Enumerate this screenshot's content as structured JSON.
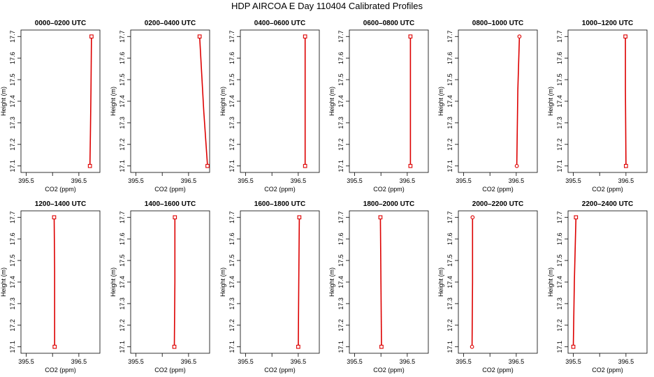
{
  "title": "HDP AIRCOA E  Day 110404  Calibrated Profiles",
  "chart_data": [
    {
      "type": "line",
      "title": "0000–0200 UTC",
      "xlabel": "CO2 (ppm)",
      "ylabel": "Height (m)",
      "xlim": [
        395.4,
        396.9
      ],
      "ylim": [
        17.07,
        17.73
      ],
      "xticks": [
        "395.5",
        "396.5"
      ],
      "yticks": [
        "17.1",
        "17.2",
        "17.3",
        "17.4",
        "17.5",
        "17.6",
        "17.7"
      ],
      "series": [
        {
          "values": [
            [
              396.71,
              17.1
            ],
            [
              396.72,
              17.25
            ],
            [
              396.73,
              17.45
            ],
            [
              396.74,
              17.7
            ]
          ]
        }
      ],
      "markers": "square",
      "color": "#dd0000"
    },
    {
      "type": "line",
      "title": "0200–0400 UTC",
      "xlabel": "CO2 (ppm)",
      "ylabel": "Height (m)",
      "xlim": [
        395.4,
        396.9
      ],
      "ylim": [
        17.07,
        17.73
      ],
      "xticks": [
        "395.5",
        "396.5"
      ],
      "yticks": [
        "17.1",
        "17.2",
        "17.3",
        "17.4",
        "17.5",
        "17.6",
        "17.7"
      ],
      "series": [
        {
          "values": [
            [
              396.86,
              17.1
            ],
            [
              396.79,
              17.35
            ],
            [
              396.71,
              17.7
            ]
          ]
        }
      ],
      "markers": "square",
      "color": "#dd0000"
    },
    {
      "type": "line",
      "title": "0400–0600 UTC",
      "xlabel": "CO2 (ppm)",
      "ylabel": "Height (m)",
      "xlim": [
        395.4,
        396.9
      ],
      "ylim": [
        17.07,
        17.73
      ],
      "xticks": [
        "395.5",
        "396.5"
      ],
      "yticks": [
        "17.1",
        "17.2",
        "17.3",
        "17.4",
        "17.5",
        "17.6",
        "17.7"
      ],
      "series": [
        {
          "values": [
            [
              396.63,
              17.1
            ],
            [
              396.63,
              17.4
            ],
            [
              396.63,
              17.7
            ]
          ]
        }
      ],
      "markers": "square",
      "color": "#dd0000"
    },
    {
      "type": "line",
      "title": "0600–0800 UTC",
      "xlabel": "CO2 (ppm)",
      "ylabel": "Height (m)",
      "xlim": [
        395.4,
        396.9
      ],
      "ylim": [
        17.07,
        17.73
      ],
      "xticks": [
        "395.5",
        "396.5"
      ],
      "yticks": [
        "17.1",
        "17.2",
        "17.3",
        "17.4",
        "17.5",
        "17.6",
        "17.7"
      ],
      "series": [
        {
          "values": [
            [
              396.56,
              17.1
            ],
            [
              396.56,
              17.7
            ]
          ]
        }
      ],
      "markers": "square",
      "color": "#dd0000"
    },
    {
      "type": "line",
      "title": "0800–1000 UTC",
      "xlabel": "CO2 (ppm)",
      "ylabel": "Height (m)",
      "xlim": [
        395.4,
        396.9
      ],
      "ylim": [
        17.07,
        17.73
      ],
      "xticks": [
        "395.5",
        "396.5"
      ],
      "yticks": [
        "17.1",
        "17.2",
        "17.3",
        "17.4",
        "17.5",
        "17.6",
        "17.7"
      ],
      "series": [
        {
          "values": [
            [
              396.51,
              17.1
            ],
            [
              396.53,
              17.45
            ],
            [
              396.56,
              17.7
            ]
          ]
        }
      ],
      "markers": "circle",
      "color": "#dd0000"
    },
    {
      "type": "line",
      "title": "1000–1200 UTC",
      "xlabel": "CO2 (ppm)",
      "ylabel": "Height (m)",
      "xlim": [
        395.4,
        396.9
      ],
      "ylim": [
        17.07,
        17.73
      ],
      "xticks": [
        "395.5",
        "396.5"
      ],
      "yticks": [
        "17.1",
        "17.2",
        "17.3",
        "17.4",
        "17.5",
        "17.6",
        "17.7"
      ],
      "series": [
        {
          "values": [
            [
              396.5,
              17.1
            ],
            [
              396.49,
              17.45
            ],
            [
              396.49,
              17.7
            ]
          ]
        }
      ],
      "markers": "square",
      "color": "#dd0000"
    },
    {
      "type": "line",
      "title": "1200–1400 UTC",
      "xlabel": "CO2 (ppm)",
      "ylabel": "Height (m)",
      "xlim": [
        395.4,
        396.9
      ],
      "ylim": [
        17.07,
        17.73
      ],
      "xticks": [
        "395.5",
        "396.5"
      ],
      "yticks": [
        "17.1",
        "17.2",
        "17.3",
        "17.4",
        "17.5",
        "17.6",
        "17.7"
      ],
      "series": [
        {
          "values": [
            [
              396.04,
              17.1
            ],
            [
              396.04,
              17.45
            ],
            [
              396.03,
              17.7
            ]
          ]
        }
      ],
      "markers": "square",
      "color": "#dd0000"
    },
    {
      "type": "line",
      "title": "1400–1600 UTC",
      "xlabel": "CO2 (ppm)",
      "ylabel": "Height (m)",
      "xlim": [
        395.4,
        396.9
      ],
      "ylim": [
        17.07,
        17.73
      ],
      "xticks": [
        "395.5",
        "396.5"
      ],
      "yticks": [
        "17.1",
        "17.2",
        "17.3",
        "17.4",
        "17.5",
        "17.6",
        "17.7"
      ],
      "series": [
        {
          "values": [
            [
              396.23,
              17.1
            ],
            [
              396.24,
              17.4
            ],
            [
              396.24,
              17.7
            ]
          ]
        }
      ],
      "markers": "square",
      "color": "#dd0000"
    },
    {
      "type": "line",
      "title": "1600–1800 UTC",
      "xlabel": "CO2 (ppm)",
      "ylabel": "Height (m)",
      "xlim": [
        395.4,
        396.9
      ],
      "ylim": [
        17.07,
        17.73
      ],
      "xticks": [
        "395.5",
        "396.5"
      ],
      "yticks": [
        "17.1",
        "17.2",
        "17.3",
        "17.4",
        "17.5",
        "17.6",
        "17.7"
      ],
      "series": [
        {
          "values": [
            [
              396.5,
              17.1
            ],
            [
              396.51,
              17.4
            ],
            [
              396.52,
              17.7
            ]
          ]
        }
      ],
      "markers": "square",
      "color": "#dd0000"
    },
    {
      "type": "line",
      "title": "1800–2000 UTC",
      "xlabel": "CO2 (ppm)",
      "ylabel": "Height (m)",
      "xlim": [
        395.4,
        396.9
      ],
      "ylim": [
        17.07,
        17.73
      ],
      "xticks": [
        "395.5",
        "396.5"
      ],
      "yticks": [
        "17.1",
        "17.2",
        "17.3",
        "17.4",
        "17.5",
        "17.6",
        "17.7"
      ],
      "series": [
        {
          "values": [
            [
              396.01,
              17.1
            ],
            [
              396.0,
              17.4
            ],
            [
              395.99,
              17.7
            ]
          ]
        }
      ],
      "markers": "square",
      "color": "#dd0000"
    },
    {
      "type": "line",
      "title": "2000–2200 UTC",
      "xlabel": "CO2 (ppm)",
      "ylabel": "Height (m)",
      "xlim": [
        395.4,
        396.9
      ],
      "ylim": [
        17.07,
        17.73
      ],
      "xticks": [
        "395.5",
        "396.5"
      ],
      "yticks": [
        "17.1",
        "17.2",
        "17.3",
        "17.4",
        "17.5",
        "17.6",
        "17.7"
      ],
      "series": [
        {
          "values": [
            [
              395.66,
              17.1
            ],
            [
              395.67,
              17.4
            ],
            [
              395.67,
              17.7
            ]
          ]
        }
      ],
      "markers": "circle",
      "color": "#dd0000"
    },
    {
      "type": "line",
      "title": "2200–2400 UTC",
      "xlabel": "CO2 (ppm)",
      "ylabel": "Height (m)",
      "xlim": [
        395.4,
        396.9
      ],
      "ylim": [
        17.07,
        17.73
      ],
      "xticks": [
        "395.5",
        "396.5"
      ],
      "yticks": [
        "17.1",
        "17.2",
        "17.3",
        "17.4",
        "17.5",
        "17.6",
        "17.7"
      ],
      "series": [
        {
          "values": [
            [
              395.5,
              17.1
            ],
            [
              395.52,
              17.4
            ],
            [
              395.55,
              17.7
            ]
          ]
        }
      ],
      "markers": "square",
      "color": "#dd0000"
    }
  ]
}
